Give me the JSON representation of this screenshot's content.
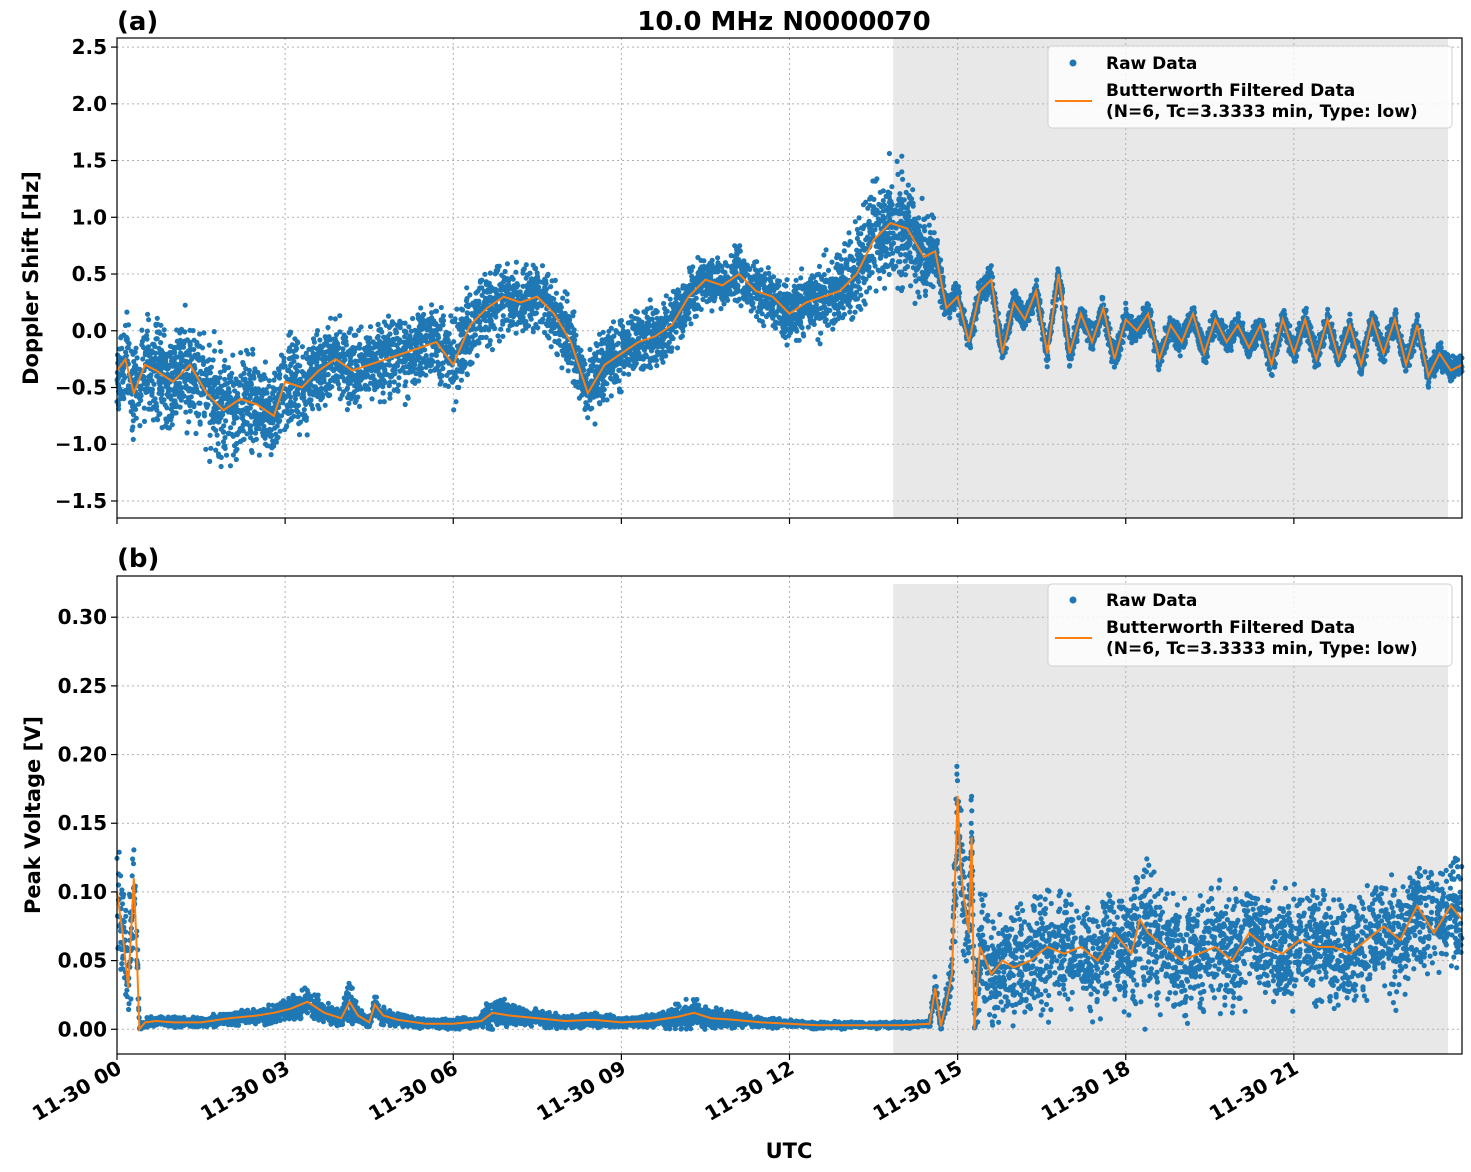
{
  "figure": {
    "title": "10.0 MHz N0000070",
    "xlabel": "UTC",
    "x_tick_labels": [
      "11-30 00",
      "11-30 03",
      "11-30 06",
      "11-30 09",
      "11-30 12",
      "11-30 15",
      "11-30 18",
      "11-30 21"
    ]
  },
  "colors": {
    "raw": "#1f77b4",
    "filtered": "#ff7f0e",
    "shade": "#e8e8e8"
  },
  "chart_data": [
    {
      "type": "scatter",
      "panel_label": "(a)",
      "ylabel": "Doppler Shift [Hz]",
      "xlim_hours": [
        0,
        24
      ],
      "ylim": [
        -1.65,
        2.58
      ],
      "y_ticks": [
        "2.5",
        "2.0",
        "1.5",
        "1.0",
        "0.5",
        "0.0",
        "−0.5",
        "−1.0",
        "−1.5"
      ],
      "y_tick_values": [
        2.5,
        2.0,
        1.5,
        1.0,
        0.5,
        0.0,
        -0.5,
        -1.0,
        -1.5
      ],
      "shaded_region_hours": [
        13.85,
        23.75
      ],
      "grid": true,
      "legend_placement": "top-right",
      "legend": {
        "raw": "Raw Data",
        "filtered_line1": "Butterworth Filtered Data",
        "filtered_line2": "(N=6, Tc=3.3333 min, Type: low)"
      },
      "series": [
        {
          "name": "Butterworth Filtered Data",
          "x_hours": [
            0.0,
            0.15,
            0.3,
            0.5,
            0.7,
            1.0,
            1.3,
            1.6,
            1.9,
            2.2,
            2.5,
            2.8,
            3.0,
            3.3,
            3.6,
            3.9,
            4.2,
            4.5,
            4.8,
            5.1,
            5.4,
            5.7,
            6.0,
            6.3,
            6.6,
            6.9,
            7.2,
            7.5,
            7.8,
            8.1,
            8.4,
            8.7,
            9.0,
            9.3,
            9.6,
            9.9,
            10.2,
            10.5,
            10.8,
            11.1,
            11.4,
            11.7,
            12.0,
            12.3,
            12.6,
            12.9,
            13.2,
            13.5,
            13.8,
            14.1,
            14.4,
            14.6,
            14.8,
            15.0,
            15.2,
            15.4,
            15.6,
            15.8,
            16.0,
            16.2,
            16.4,
            16.6,
            16.8,
            17.0,
            17.2,
            17.4,
            17.6,
            17.8,
            18.0,
            18.2,
            18.4,
            18.6,
            18.8,
            19.0,
            19.2,
            19.4,
            19.6,
            19.8,
            20.0,
            20.2,
            20.4,
            20.6,
            20.8,
            21.0,
            21.2,
            21.4,
            21.6,
            21.8,
            22.0,
            22.2,
            22.4,
            22.6,
            22.8,
            23.0,
            23.2,
            23.4,
            23.6,
            23.8,
            24.0
          ],
          "y": [
            -0.35,
            -0.25,
            -0.55,
            -0.3,
            -0.35,
            -0.45,
            -0.3,
            -0.55,
            -0.7,
            -0.6,
            -0.65,
            -0.75,
            -0.45,
            -0.5,
            -0.35,
            -0.25,
            -0.35,
            -0.3,
            -0.25,
            -0.2,
            -0.15,
            -0.1,
            -0.3,
            0.05,
            0.2,
            0.3,
            0.25,
            0.3,
            0.15,
            -0.1,
            -0.55,
            -0.3,
            -0.2,
            -0.1,
            -0.05,
            0.05,
            0.3,
            0.45,
            0.4,
            0.5,
            0.35,
            0.3,
            0.15,
            0.25,
            0.3,
            0.35,
            0.5,
            0.8,
            0.95,
            0.9,
            0.65,
            0.7,
            0.2,
            0.3,
            -0.1,
            0.35,
            0.45,
            -0.2,
            0.25,
            0.1,
            0.35,
            -0.2,
            0.5,
            -0.2,
            0.15,
            -0.1,
            0.2,
            -0.25,
            0.1,
            0.0,
            0.15,
            -0.25,
            0.05,
            -0.1,
            0.15,
            -0.2,
            0.1,
            -0.1,
            0.05,
            -0.15,
            0.05,
            -0.3,
            0.1,
            -0.2,
            0.1,
            -0.25,
            0.1,
            -0.25,
            0.05,
            -0.3,
            0.1,
            -0.2,
            0.1,
            -0.3,
            0.05,
            -0.4,
            -0.2,
            -0.35,
            -0.3
          ]
        },
        {
          "name": "Raw Data",
          "spread": [
            0.35,
            0.35,
            0.35,
            0.38,
            0.4,
            0.4,
            0.4,
            0.4,
            0.4,
            0.4,
            0.4,
            0.35,
            0.35,
            0.35,
            0.3,
            0.3,
            0.3,
            0.3,
            0.3,
            0.3,
            0.3,
            0.3,
            0.35,
            0.35,
            0.3,
            0.25,
            0.25,
            0.25,
            0.25,
            0.3,
            0.3,
            0.3,
            0.25,
            0.25,
            0.25,
            0.25,
            0.22,
            0.2,
            0.2,
            0.2,
            0.2,
            0.2,
            0.22,
            0.25,
            0.28,
            0.3,
            0.4,
            0.45,
            0.45,
            0.4,
            0.35,
            0.2,
            0.12,
            0.1,
            0.1,
            0.1,
            0.1,
            0.1,
            0.1,
            0.1,
            0.1,
            0.1,
            0.1,
            0.1,
            0.1,
            0.1,
            0.1,
            0.1,
            0.1,
            0.1,
            0.1,
            0.1,
            0.1,
            0.1,
            0.1,
            0.1,
            0.1,
            0.1,
            0.1,
            0.1,
            0.1,
            0.1,
            0.1,
            0.1,
            0.1,
            0.1,
            0.1,
            0.1,
            0.1,
            0.1,
            0.1,
            0.1,
            0.1,
            0.1,
            0.1,
            0.1,
            0.1,
            0.1,
            0.1
          ]
        }
      ]
    },
    {
      "type": "scatter",
      "panel_label": "(b)",
      "ylabel": "Peak Voltage [V]",
      "xlim_hours": [
        0,
        24
      ],
      "ylim": [
        -0.018,
        0.33
      ],
      "y_ticks": [
        "0.30",
        "0.25",
        "0.20",
        "0.15",
        "0.10",
        "0.05",
        "0.00"
      ],
      "y_tick_values": [
        0.3,
        0.25,
        0.2,
        0.15,
        0.1,
        0.05,
        0.0
      ],
      "shaded_region_hours": [
        13.85,
        23.75
      ],
      "grid": true,
      "legend_placement": "top-right",
      "legend": {
        "raw": "Raw Data",
        "filtered_line1": "Butterworth Filtered Data",
        "filtered_line2": "(N=6, Tc=3.3333 min, Type: low)"
      },
      "series": [
        {
          "name": "Butterworth Filtered Data",
          "x_hours": [
            0.0,
            0.1,
            0.2,
            0.3,
            0.35,
            0.4,
            0.5,
            0.7,
            1.0,
            1.5,
            2.0,
            2.5,
            2.8,
            3.1,
            3.4,
            3.7,
            4.0,
            4.15,
            4.3,
            4.5,
            4.6,
            4.75,
            5.0,
            5.5,
            6.0,
            6.5,
            6.7,
            7.0,
            7.5,
            8.0,
            8.5,
            9.0,
            9.5,
            10.0,
            10.3,
            10.6,
            11.0,
            11.5,
            12.0,
            12.5,
            13.0,
            13.5,
            14.0,
            14.5,
            14.6,
            14.7,
            14.8,
            14.9,
            15.0,
            15.05,
            15.1,
            15.2,
            15.25,
            15.3,
            15.4,
            15.6,
            15.8,
            16.0,
            16.3,
            16.6,
            16.9,
            17.2,
            17.5,
            17.8,
            18.1,
            18.25,
            18.4,
            18.7,
            19.0,
            19.3,
            19.6,
            19.9,
            20.2,
            20.5,
            20.8,
            21.1,
            21.4,
            21.7,
            22.0,
            22.3,
            22.6,
            22.9,
            23.2,
            23.5,
            23.8,
            24.0
          ],
          "y": [
            0.1,
            0.07,
            0.03,
            0.11,
            0.06,
            0.0,
            0.005,
            0.006,
            0.005,
            0.005,
            0.008,
            0.01,
            0.012,
            0.015,
            0.02,
            0.012,
            0.008,
            0.02,
            0.01,
            0.005,
            0.018,
            0.01,
            0.007,
            0.004,
            0.004,
            0.006,
            0.012,
            0.01,
            0.008,
            0.006,
            0.007,
            0.005,
            0.006,
            0.009,
            0.012,
            0.008,
            0.007,
            0.005,
            0.004,
            0.003,
            0.003,
            0.003,
            0.003,
            0.004,
            0.03,
            0.002,
            0.02,
            0.04,
            0.17,
            0.12,
            0.1,
            0.07,
            0.14,
            0.0,
            0.06,
            0.04,
            0.05,
            0.045,
            0.05,
            0.06,
            0.055,
            0.06,
            0.05,
            0.07,
            0.055,
            0.08,
            0.07,
            0.06,
            0.05,
            0.055,
            0.06,
            0.05,
            0.07,
            0.06,
            0.055,
            0.065,
            0.06,
            0.06,
            0.055,
            0.065,
            0.075,
            0.065,
            0.09,
            0.07,
            0.09,
            0.08
          ]
        },
        {
          "name": "Raw Data",
          "spread": [
            0.04,
            0.04,
            0.04,
            0.04,
            0.04,
            0.004,
            0.003,
            0.003,
            0.003,
            0.003,
            0.004,
            0.005,
            0.006,
            0.008,
            0.01,
            0.006,
            0.005,
            0.015,
            0.005,
            0.003,
            0.008,
            0.005,
            0.004,
            0.003,
            0.003,
            0.004,
            0.01,
            0.008,
            0.005,
            0.004,
            0.005,
            0.003,
            0.004,
            0.008,
            0.01,
            0.006,
            0.005,
            0.003,
            0.002,
            0.002,
            0.002,
            0.002,
            0.002,
            0.002,
            0.01,
            0.002,
            0.01,
            0.02,
            0.05,
            0.04,
            0.035,
            0.03,
            0.04,
            0.02,
            0.035,
            0.035,
            0.035,
            0.035,
            0.035,
            0.035,
            0.035,
            0.035,
            0.035,
            0.035,
            0.035,
            0.05,
            0.045,
            0.035,
            0.035,
            0.035,
            0.035,
            0.035,
            0.035,
            0.035,
            0.035,
            0.035,
            0.035,
            0.035,
            0.035,
            0.035,
            0.035,
            0.035,
            0.035,
            0.035,
            0.035,
            0.035
          ]
        }
      ]
    }
  ]
}
